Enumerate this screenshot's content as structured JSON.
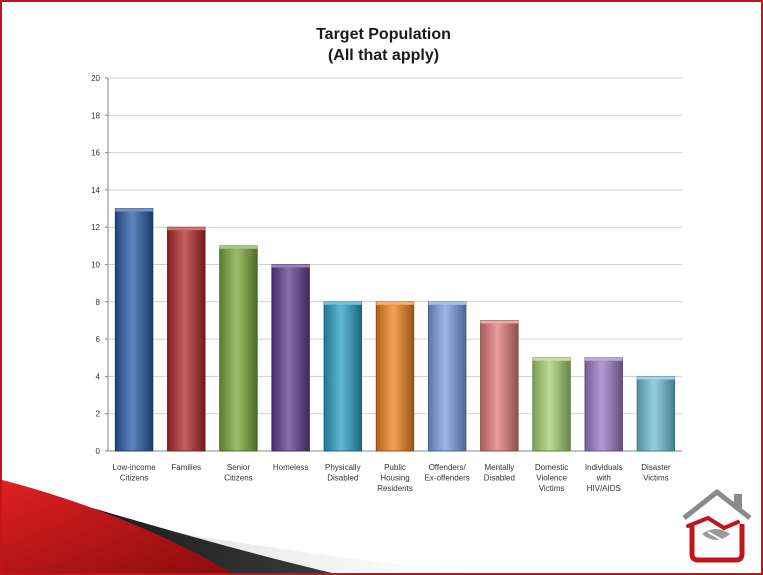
{
  "chart_data": {
    "type": "bar",
    "title": [
      "Target Population",
      "(All that apply)"
    ],
    "categories": [
      [
        "Low-income",
        "Citizens"
      ],
      [
        "Families"
      ],
      [
        "Senior",
        "Citizens"
      ],
      [
        "Homeless"
      ],
      [
        "Physically",
        "Disabled"
      ],
      [
        "Public",
        "Housing",
        "Residents"
      ],
      [
        "Offenders/",
        "Ex-offenders"
      ],
      [
        "Mentally",
        "Disabled"
      ],
      [
        "Domestic",
        "Violence",
        "Victims"
      ],
      [
        "Individuals",
        "with",
        "HIV/AIDS"
      ],
      [
        "Disaster",
        "Victims"
      ]
    ],
    "values": [
      13,
      12,
      11,
      10,
      8,
      8,
      8,
      7,
      5,
      5,
      4
    ],
    "colors": [
      "#2a5aa6",
      "#b22a2a",
      "#7aa83a",
      "#5e3f8e",
      "#2aa0c6",
      "#f0821e",
      "#7a9ee0",
      "#e07a7a",
      "#a6d070",
      "#9b7ac6",
      "#70c0d8"
    ],
    "ylim": [
      0,
      20
    ],
    "yticks": [
      0,
      2,
      4,
      6,
      8,
      10,
      12,
      14,
      16,
      18,
      20
    ],
    "grid": true,
    "xlabel": "",
    "ylabel": ""
  },
  "decor": {
    "border_color": "#c0151a",
    "swoosh_colors": [
      "#c0151a",
      "#1a1a1a"
    ],
    "logo_icon": "house-handshake-logo"
  }
}
